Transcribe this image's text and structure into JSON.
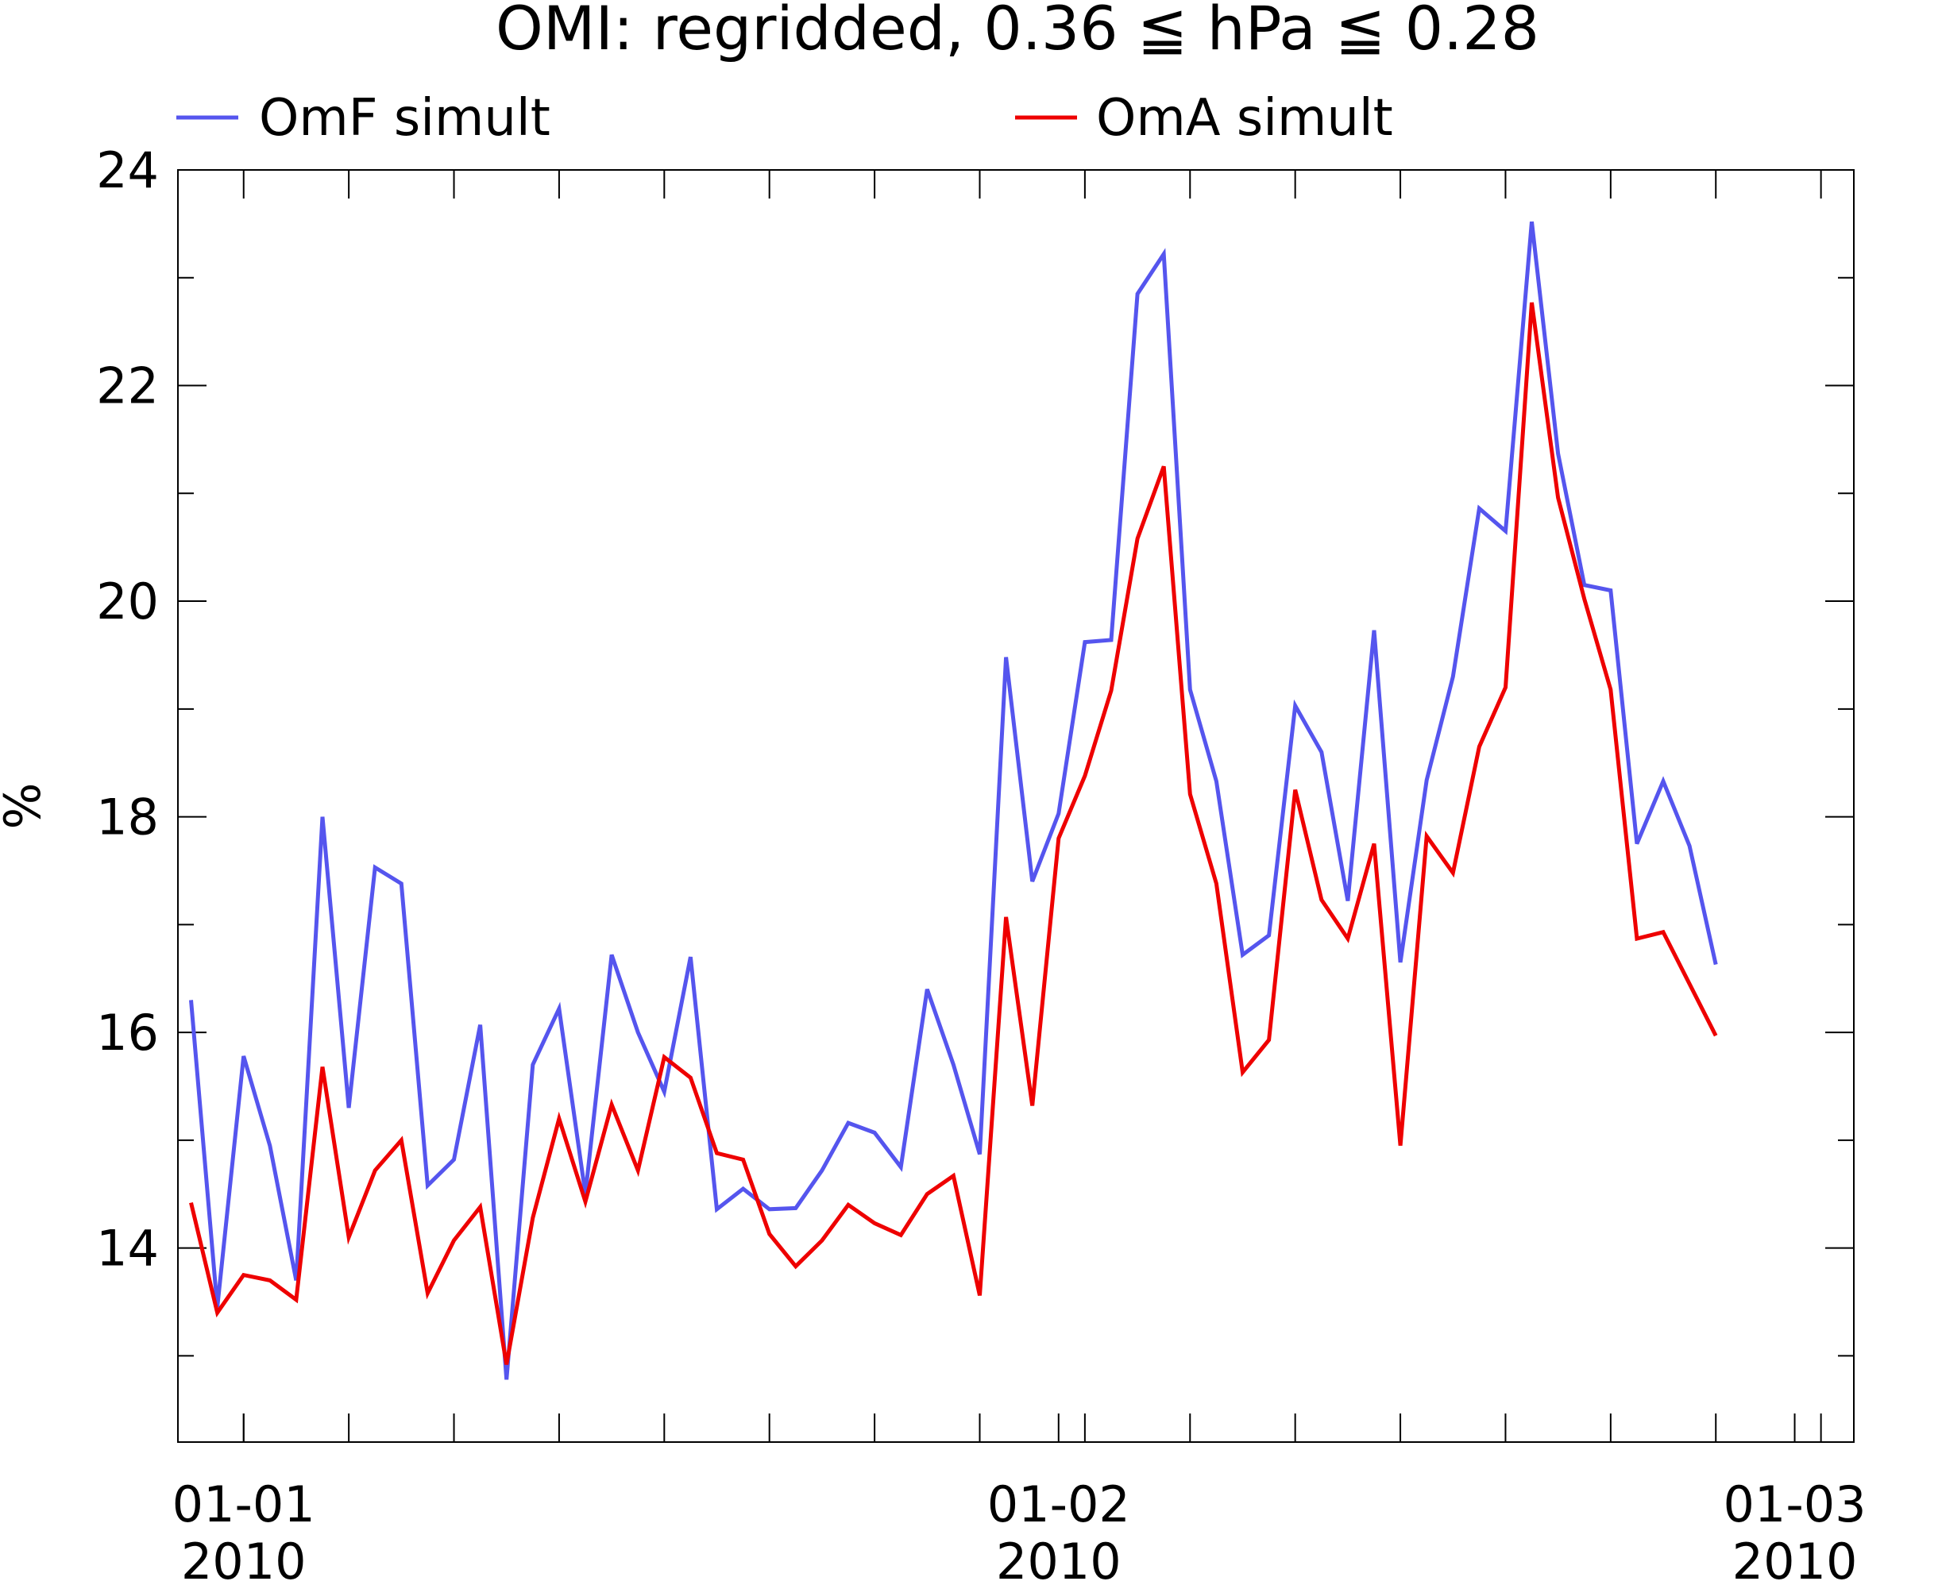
{
  "chart_data": {
    "type": "line",
    "title": "OMI: regridded, 0.36 ≦ hPa ≦ 0.28",
    "xlabel": "",
    "ylabel": "%",
    "ylim": [
      12.2,
      24.0
    ],
    "yticks": [
      {
        "value": 14,
        "label": "14"
      },
      {
        "value": 16,
        "label": "16"
      },
      {
        "value": 18,
        "label": "18"
      },
      {
        "value": 20,
        "label": "20"
      },
      {
        "value": 22,
        "label": "22"
      },
      {
        "value": 24,
        "label": "24"
      }
    ],
    "xticks": [
      {
        "date": "2010-01-01",
        "line1": "01-01",
        "line2": "2010"
      },
      {
        "date": "2010-02-01",
        "line1": "01-02",
        "line2": "2010"
      },
      {
        "date": "2010-03-01",
        "line1": "01-03",
        "line2": "2010"
      }
    ],
    "xlim": [
      "2009-12-29 12:00",
      "2010-03-03 06:00"
    ],
    "grid": false,
    "legend_position": "top",
    "series": [
      {
        "name": "OmF simult",
        "color": "#5555ee",
        "points": [
          [
            "2009-12-30",
            16.3
          ],
          [
            "2009-12-31",
            13.45
          ],
          [
            "2010-01-01",
            15.78
          ],
          [
            "2010-01-02",
            14.95
          ],
          [
            "2010-01-03",
            13.7
          ],
          [
            "2010-01-04",
            18.0
          ],
          [
            "2010-01-05",
            15.3
          ],
          [
            "2010-01-06",
            17.53
          ],
          [
            "2010-01-07",
            17.38
          ],
          [
            "2010-01-08",
            14.58
          ],
          [
            "2010-01-09",
            14.82
          ],
          [
            "2010-01-10",
            16.07
          ],
          [
            "2010-01-11",
            12.78
          ],
          [
            "2010-01-12",
            15.7
          ],
          [
            "2010-01-13",
            16.22
          ],
          [
            "2010-01-14",
            14.5
          ],
          [
            "2010-01-15",
            16.72
          ],
          [
            "2010-01-16",
            16.0
          ],
          [
            "2010-01-17",
            15.45
          ],
          [
            "2010-01-18",
            16.7
          ],
          [
            "2010-01-19",
            14.36
          ],
          [
            "2010-01-20",
            14.55
          ],
          [
            "2010-01-21",
            14.36
          ],
          [
            "2010-01-22",
            14.37
          ],
          [
            "2010-01-23",
            14.72
          ],
          [
            "2010-01-24",
            15.16
          ],
          [
            "2010-01-25",
            15.07
          ],
          [
            "2010-01-26",
            14.75
          ],
          [
            "2010-01-27",
            16.4
          ],
          [
            "2010-01-28",
            15.7
          ],
          [
            "2010-01-29",
            14.87
          ],
          [
            "2010-01-30",
            19.48
          ],
          [
            "2010-01-31",
            17.4
          ],
          [
            "2010-02-01",
            18.03
          ],
          [
            "2010-02-02",
            19.62
          ],
          [
            "2010-02-03",
            19.64
          ],
          [
            "2010-02-04",
            22.85
          ],
          [
            "2010-02-05",
            23.22
          ],
          [
            "2010-02-06",
            19.18
          ],
          [
            "2010-02-07",
            18.33
          ],
          [
            "2010-02-08",
            16.72
          ],
          [
            "2010-02-09",
            16.9
          ],
          [
            "2010-02-10",
            19.03
          ],
          [
            "2010-02-11",
            18.6
          ],
          [
            "2010-02-12",
            17.22
          ],
          [
            "2010-02-13",
            19.73
          ],
          [
            "2010-02-14",
            16.65
          ],
          [
            "2010-02-15",
            18.34
          ],
          [
            "2010-02-16",
            19.3
          ],
          [
            "2010-02-17",
            20.86
          ],
          [
            "2010-02-18",
            20.65
          ],
          [
            "2010-02-19",
            23.52
          ],
          [
            "2010-02-20",
            21.37
          ],
          [
            "2010-02-21",
            20.15
          ],
          [
            "2010-02-22",
            20.1
          ],
          [
            "2010-02-23",
            17.75
          ],
          [
            "2010-02-24",
            18.33
          ],
          [
            "2010-02-25",
            17.73
          ],
          [
            "2010-02-26",
            16.63
          ]
        ]
      },
      {
        "name": "OmA simult",
        "color": "#ee0000",
        "points": [
          [
            "2009-12-30",
            14.42
          ],
          [
            "2009-12-31",
            13.4
          ],
          [
            "2010-01-01",
            13.75
          ],
          [
            "2010-01-02",
            13.7
          ],
          [
            "2010-01-03",
            13.52
          ],
          [
            "2010-01-04",
            15.68
          ],
          [
            "2010-01-05",
            14.1
          ],
          [
            "2010-01-06",
            14.72
          ],
          [
            "2010-01-07",
            15.0
          ],
          [
            "2010-01-08",
            13.58
          ],
          [
            "2010-01-09",
            14.07
          ],
          [
            "2010-01-10",
            14.38
          ],
          [
            "2010-01-11",
            12.92
          ],
          [
            "2010-01-12",
            14.28
          ],
          [
            "2010-01-13",
            15.2
          ],
          [
            "2010-01-14",
            14.43
          ],
          [
            "2010-01-15",
            15.33
          ],
          [
            "2010-01-16",
            14.72
          ],
          [
            "2010-01-17",
            15.77
          ],
          [
            "2010-01-18",
            15.58
          ],
          [
            "2010-01-19",
            14.88
          ],
          [
            "2010-01-20",
            14.82
          ],
          [
            "2010-01-21",
            14.13
          ],
          [
            "2010-01-22",
            13.83
          ],
          [
            "2010-01-23",
            14.07
          ],
          [
            "2010-01-24",
            14.4
          ],
          [
            "2010-01-25",
            14.23
          ],
          [
            "2010-01-26",
            14.12
          ],
          [
            "2010-01-27",
            14.5
          ],
          [
            "2010-01-28",
            14.67
          ],
          [
            "2010-01-29",
            13.56
          ],
          [
            "2010-01-30",
            17.07
          ],
          [
            "2010-01-31",
            15.32
          ],
          [
            "2010-02-01",
            17.8
          ],
          [
            "2010-02-02",
            18.38
          ],
          [
            "2010-02-03",
            19.17
          ],
          [
            "2010-02-04",
            20.58
          ],
          [
            "2010-02-05",
            21.25
          ],
          [
            "2010-02-06",
            18.21
          ],
          [
            "2010-02-07",
            17.38
          ],
          [
            "2010-02-08",
            15.63
          ],
          [
            "2010-02-09",
            15.93
          ],
          [
            "2010-02-10",
            18.25
          ],
          [
            "2010-02-11",
            17.23
          ],
          [
            "2010-02-12",
            16.87
          ],
          [
            "2010-02-13",
            17.75
          ],
          [
            "2010-02-14",
            14.95
          ],
          [
            "2010-02-15",
            17.82
          ],
          [
            "2010-02-16",
            17.48
          ],
          [
            "2010-02-17",
            18.65
          ],
          [
            "2010-02-18",
            19.2
          ],
          [
            "2010-02-19",
            22.77
          ],
          [
            "2010-02-20",
            20.96
          ],
          [
            "2010-02-21",
            20.02
          ],
          [
            "2010-02-22",
            19.18
          ],
          [
            "2010-02-23",
            16.87
          ],
          [
            "2010-02-24",
            16.93
          ],
          [
            "2010-02-25",
            16.45
          ],
          [
            "2010-02-26",
            15.97
          ]
        ]
      }
    ]
  }
}
